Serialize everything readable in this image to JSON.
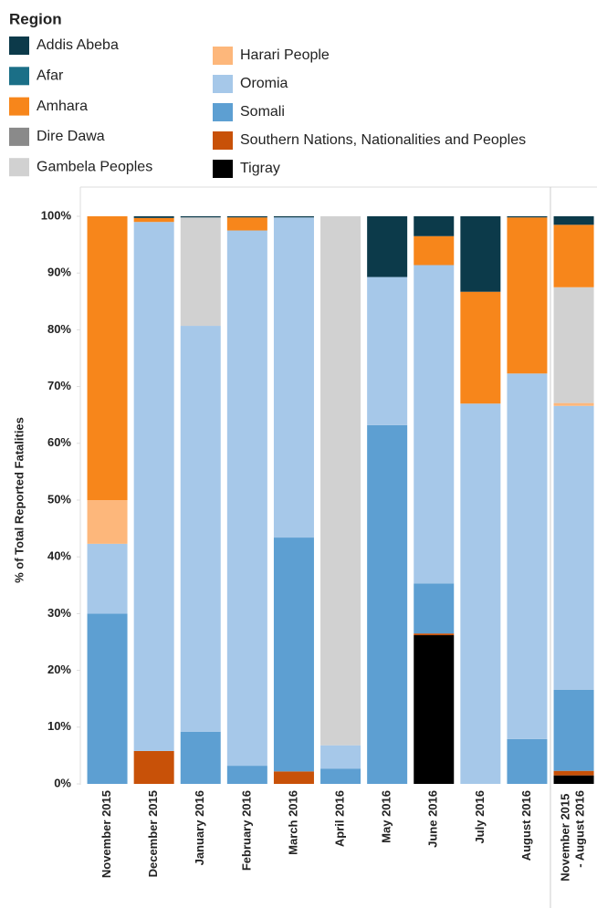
{
  "chart_data": {
    "type": "stacked_bar",
    "legend_title": "Region",
    "y_label": "% of Total Reported Fatalities",
    "categories": [
      "November 2015",
      "December 2015",
      "January 2016",
      "February 2016",
      "March 2016",
      "April 2016",
      "May 2016",
      "June 2016",
      "July 2016",
      "August 2016",
      "November 2015 - August 2016"
    ],
    "series": [
      {
        "name": "Addis Abeba",
        "color": "#0c3a4a",
        "values": [
          0,
          0.3,
          0.2,
          0.2,
          0.2,
          0,
          10.7,
          3.5,
          13.3,
          0.2,
          1.5
        ]
      },
      {
        "name": "Afar",
        "color": "#1b6f87",
        "values": [
          0,
          0,
          0,
          0,
          0,
          0,
          0,
          0,
          0,
          0,
          0
        ]
      },
      {
        "name": "Amhara",
        "color": "#f7861b",
        "values": [
          50,
          0.7,
          0,
          2.3,
          0,
          0,
          0,
          5.1,
          19.7,
          27.5,
          11
        ]
      },
      {
        "name": "Dire Dawa",
        "color": "#8a8a8a",
        "values": [
          0,
          0,
          0,
          0,
          0,
          0,
          0,
          0,
          0,
          0,
          0
        ]
      },
      {
        "name": "Gambela Peoples",
        "color": "#d1d1d1",
        "values": [
          0,
          0,
          19.1,
          0,
          0,
          93.2,
          0,
          0,
          0,
          0,
          20.4
        ]
      },
      {
        "name": "Harari People",
        "color": "#fdb77b",
        "values": [
          7.7,
          0,
          0,
          0,
          0,
          0,
          0,
          0,
          0,
          0,
          0.5
        ]
      },
      {
        "name": "Oromia",
        "color": "#a6c8e9",
        "values": [
          12.3,
          93.2,
          71.5,
          94.3,
          56.4,
          4.1,
          26.1,
          56.1,
          67,
          64.4,
          50
        ]
      },
      {
        "name": "Somali",
        "color": "#5d9fd2",
        "values": [
          30,
          0,
          9.2,
          3.2,
          41.2,
          2.7,
          63.2,
          8.8,
          0,
          7.9,
          14.3
        ]
      },
      {
        "name": "Southern Nations, Nationalities and Peoples",
        "color": "#c85108",
        "values": [
          0,
          5.8,
          0,
          0,
          2.2,
          0,
          0,
          0.3,
          0,
          0,
          0.8
        ]
      },
      {
        "name": "Tigray",
        "color": "#000000",
        "values": [
          0,
          0,
          0,
          0,
          0,
          0,
          0,
          26.2,
          0,
          0,
          1.5
        ]
      }
    ],
    "ylim": [
      0,
      100
    ],
    "yticks": [
      {
        "value": 0,
        "label": "0%"
      },
      {
        "value": 10,
        "label": "10%"
      },
      {
        "value": 20,
        "label": "20%"
      },
      {
        "value": 30,
        "label": "30%"
      },
      {
        "value": 40,
        "label": "40%"
      },
      {
        "value": 50,
        "label": "50%"
      },
      {
        "value": 60,
        "label": "60%"
      },
      {
        "value": 70,
        "label": "70%"
      },
      {
        "value": 80,
        "label": "80%"
      },
      {
        "value": 90,
        "label": "90%"
      },
      {
        "value": 100,
        "label": "100%"
      }
    ],
    "grid": false
  }
}
